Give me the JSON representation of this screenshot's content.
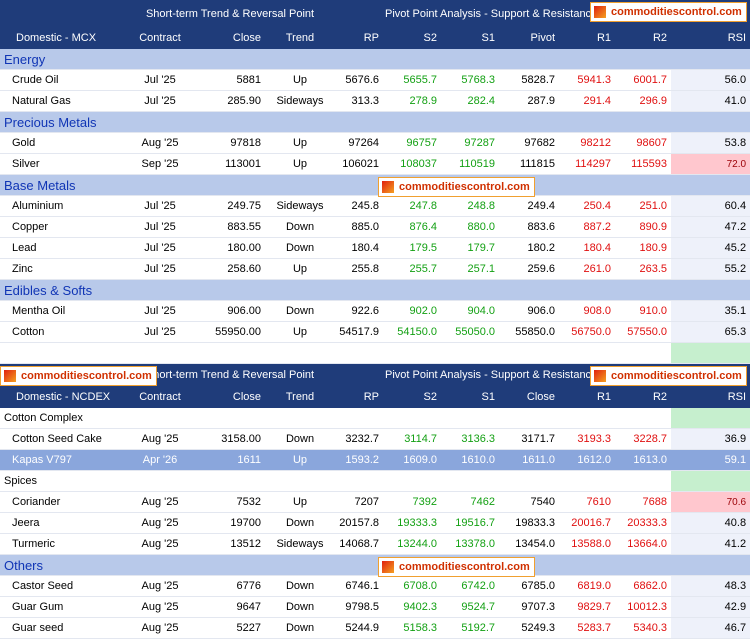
{
  "logo": "commoditiescontrol.com",
  "sections": [
    {
      "banner": {
        "left": "Short-term Trend & Reversal Point",
        "right": "Pivot Point Analysis - Support & Resistance",
        "logos": [
          "right"
        ]
      },
      "columns": [
        "Domestic - MCX",
        "Contract",
        "Close",
        "Trend",
        "RP",
        "S2",
        "S1",
        "Pivot",
        "R1",
        "R2",
        "RSI"
      ],
      "spacer": true,
      "groups": [
        {
          "name": "Energy",
          "style": "blue",
          "rows": [
            {
              "cells": [
                "Crude Oil",
                "Jul '25",
                "5881",
                "Up",
                "5676.6",
                "5655.7",
                "5768.3",
                "5828.7",
                "5941.3",
                "6001.7",
                "56.0"
              ]
            },
            {
              "cells": [
                "Natural Gas",
                "Jul '25",
                "285.90",
                "Sideways",
                "313.3",
                "278.9",
                "282.4",
                "287.9",
                "291.4",
                "296.9",
                "41.0"
              ]
            }
          ]
        },
        {
          "name": "Precious Metals",
          "style": "blue",
          "rows": [
            {
              "cells": [
                "Gold",
                "Aug '25",
                "97818",
                "Up",
                "97264",
                "96757",
                "97287",
                "97682",
                "98212",
                "98607",
                "53.8"
              ]
            },
            {
              "cells": [
                "Silver",
                "Sep '25",
                "113001",
                "Up",
                "106021",
                "108037",
                "110519",
                "111815",
                "114297",
                "115593",
                "72.0"
              ],
              "rsi": "high"
            }
          ]
        },
        {
          "name": "Base Metals",
          "style": "blue",
          "logo": true,
          "rows": [
            {
              "cells": [
                "Aluminium",
                "Jul '25",
                "249.75",
                "Sideways",
                "245.8",
                "247.8",
                "248.8",
                "249.4",
                "250.4",
                "251.0",
                "60.4"
              ]
            },
            {
              "cells": [
                "Copper",
                "Jul '25",
                "883.55",
                "Down",
                "885.0",
                "876.4",
                "880.0",
                "883.6",
                "887.2",
                "890.9",
                "47.2"
              ]
            },
            {
              "cells": [
                "Lead",
                "Jul '25",
                "180.00",
                "Down",
                "180.4",
                "179.5",
                "179.7",
                "180.2",
                "180.4",
                "180.9",
                "45.2"
              ]
            },
            {
              "cells": [
                "Zinc",
                "Jul '25",
                "258.60",
                "Up",
                "255.8",
                "255.7",
                "257.1",
                "259.6",
                "261.0",
                "263.5",
                "55.2"
              ]
            }
          ]
        },
        {
          "name": "Edibles & Softs",
          "style": "blue",
          "rows": [
            {
              "cells": [
                "Mentha Oil",
                "Jul '25",
                "906.00",
                "Down",
                "922.6",
                "902.0",
                "904.0",
                "906.0",
                "908.0",
                "910.0",
                "35.1"
              ]
            },
            {
              "cells": [
                "Cotton",
                "Jul '25",
                "55950.00",
                "Up",
                "54517.9",
                "54150.0",
                "55050.0",
                "55850.0",
                "56750.0",
                "57550.0",
                "65.3"
              ]
            }
          ]
        }
      ]
    },
    {
      "banner": {
        "left": "Short-term Trend & Reversal Point",
        "right": "Pivot Point Analysis - Support & Resistance",
        "logos": [
          "left",
          "right"
        ]
      },
      "columns": [
        "Domestic - NCDEX",
        "Contract",
        "Close",
        "Trend",
        "RP",
        "S2",
        "S1",
        "Close",
        "R1",
        "R2",
        "RSI"
      ],
      "spacer": false,
      "groups": [
        {
          "name": "Cotton Complex",
          "style": "plain",
          "rows": [
            {
              "cells": [
                "Cotton Seed Cake",
                "Aug '25",
                "3158.00",
                "Down",
                "3232.7",
                "3114.7",
                "3136.3",
                "3171.7",
                "3193.3",
                "3228.7",
                "36.9"
              ]
            },
            {
              "cells": [
                "Kapas V797",
                "Apr '26",
                "1611",
                "Up",
                "1593.2",
                "1609.0",
                "1610.0",
                "1611.0",
                "1612.0",
                "1613.0",
                "59.1"
              ],
              "style": "highlight"
            }
          ]
        },
        {
          "name": "Spices",
          "style": "plain",
          "rows": [
            {
              "cells": [
                "Coriander",
                "Aug '25",
                "7532",
                "Up",
                "7207",
                "7392",
                "7462",
                "7540",
                "7610",
                "7688",
                "70.6"
              ],
              "rsi": "high"
            },
            {
              "cells": [
                "Jeera",
                "Aug '25",
                "19700",
                "Down",
                "20157.8",
                "19333.3",
                "19516.7",
                "19833.3",
                "20016.7",
                "20333.3",
                "40.8"
              ]
            },
            {
              "cells": [
                "Turmeric",
                "Aug '25",
                "13512",
                "Sideways",
                "14068.7",
                "13244.0",
                "13378.0",
                "13454.0",
                "13588.0",
                "13664.0",
                "41.2"
              ]
            }
          ]
        },
        {
          "name": "Others",
          "style": "blue",
          "logo": true,
          "rows": [
            {
              "cells": [
                "Castor Seed",
                "Aug '25",
                "6776",
                "Down",
                "6746.1",
                "6708.0",
                "6742.0",
                "6785.0",
                "6819.0",
                "6862.0",
                "48.3"
              ]
            },
            {
              "cells": [
                "Guar Gum",
                "Aug '25",
                "9647",
                "Down",
                "9798.5",
                "9402.3",
                "9524.7",
                "9707.3",
                "9829.7",
                "10012.3",
                "42.9"
              ]
            },
            {
              "cells": [
                "Guar seed",
                "Aug '25",
                "5227",
                "Down",
                "5244.9",
                "5158.3",
                "5192.7",
                "5249.3",
                "5283.7",
                "5340.3",
                "46.7"
              ]
            }
          ]
        }
      ]
    }
  ]
}
